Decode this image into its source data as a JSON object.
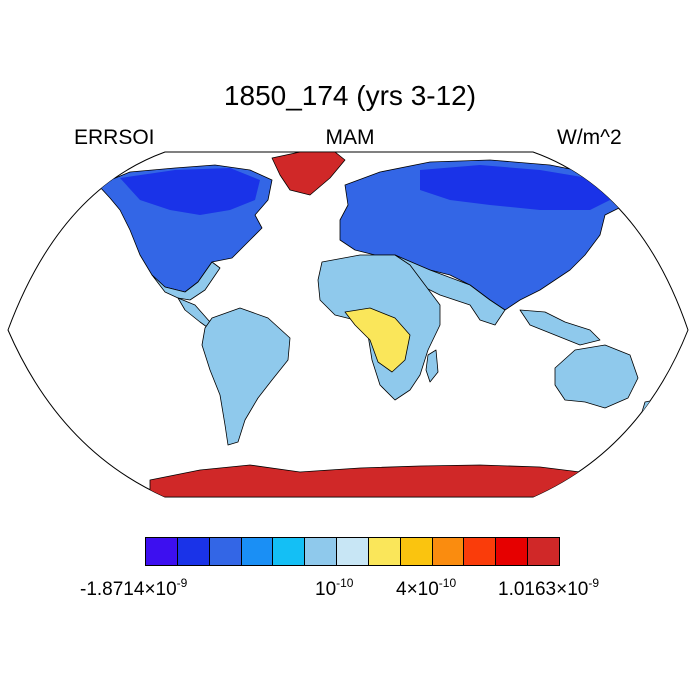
{
  "map": {
    "title": "1850_174 (yrs 3-12)",
    "left_label": "ERRSOI",
    "center_label": "MAM",
    "right_label": "W/m^2",
    "projection": "robinson",
    "ocean_color": "#ffffff",
    "coastline_color": "#000000"
  },
  "legend": {
    "colors": [
      "#3d0ff0",
      "#1a33e8",
      "#3366e6",
      "#1a8ff5",
      "#14bff5",
      "#8fc9ec",
      "#c8e6f5",
      "#fae65a",
      "#fac40f",
      "#fa8c0f",
      "#fa3c0a",
      "#e60000",
      "#d02828"
    ],
    "labels": [
      {
        "base": "-1.8714×10",
        "exp": "-9"
      },
      {
        "base": "10",
        "exp": "-10"
      },
      {
        "base": "4×10",
        "exp": "-10"
      },
      {
        "base": "1.0163×10",
        "exp": "-9"
      }
    ]
  }
}
